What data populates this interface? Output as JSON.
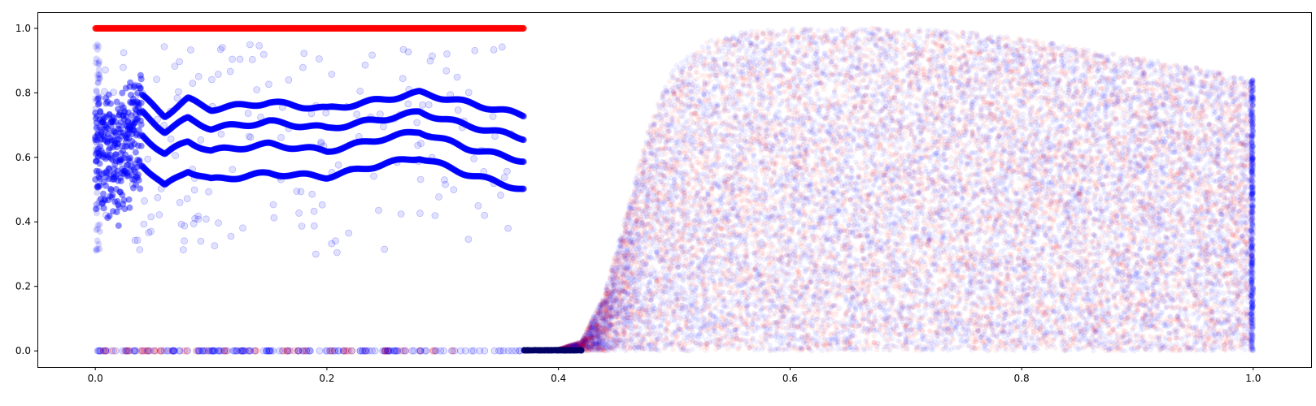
{
  "chart_data": {
    "type": "scatter",
    "title": "",
    "xlabel": "",
    "ylabel": "",
    "xlim": [
      -0.05,
      1.05
    ],
    "ylim": [
      -0.05,
      1.05
    ],
    "grid": false,
    "x_ticks": [
      0.0,
      0.2,
      0.4,
      0.6,
      0.8,
      1.0
    ],
    "x_tick_labels": [
      "0.0",
      "0.2",
      "0.4",
      "0.6",
      "0.8",
      "1.0"
    ],
    "y_ticks": [
      0.0,
      0.2,
      0.4,
      0.6,
      0.8,
      1.0
    ],
    "y_tick_labels": [
      "0.0",
      "0.2",
      "0.4",
      "0.6",
      "0.8",
      "1.0"
    ],
    "colors": {
      "red": "#ff0000",
      "blue": "#0000ff"
    },
    "series": [
      {
        "color": "red",
        "description_points": "red points at y=1.0 for x in [0, 0.37]",
        "x": [
          0.0,
          0.05,
          0.1,
          0.15,
          0.2,
          0.25,
          0.3,
          0.35,
          0.37
        ],
        "y": [
          1.0,
          1.0,
          1.0,
          1.0,
          1.0,
          1.0,
          1.0,
          1.0,
          1.0
        ]
      },
      {
        "color": "blue",
        "x": [
          0.0,
          0.02,
          0.04,
          0.06,
          0.08,
          0.1,
          0.15,
          0.2,
          0.25,
          0.28,
          0.32,
          0.37
        ],
        "y": [
          0.72,
          0.72,
          0.79,
          0.73,
          0.78,
          0.75,
          0.77,
          0.75,
          0.78,
          0.8,
          0.77,
          0.73
        ]
      },
      {
        "color": "blue",
        "x": [
          0.0,
          0.02,
          0.04,
          0.06,
          0.08,
          0.1,
          0.15,
          0.2,
          0.25,
          0.28,
          0.32,
          0.37
        ],
        "y": [
          0.66,
          0.66,
          0.74,
          0.68,
          0.72,
          0.69,
          0.71,
          0.69,
          0.72,
          0.74,
          0.7,
          0.66
        ]
      },
      {
        "color": "blue",
        "x": [
          0.0,
          0.02,
          0.04,
          0.06,
          0.08,
          0.1,
          0.15,
          0.2,
          0.25,
          0.28,
          0.32,
          0.37
        ],
        "y": [
          0.6,
          0.58,
          0.67,
          0.61,
          0.65,
          0.62,
          0.64,
          0.62,
          0.66,
          0.68,
          0.63,
          0.59
        ]
      },
      {
        "color": "blue",
        "x": [
          0.0,
          0.02,
          0.04,
          0.06,
          0.08,
          0.1,
          0.15,
          0.2,
          0.25,
          0.28,
          0.32,
          0.37
        ],
        "y": [
          0.52,
          0.46,
          0.58,
          0.51,
          0.56,
          0.53,
          0.55,
          0.54,
          0.58,
          0.6,
          0.55,
          0.5
        ]
      }
    ],
    "regions": [
      {
        "description": "dense red/blue point cloud",
        "x_range": [
          0.37,
          1.0
        ],
        "envelope_x": [
          0.37,
          0.4,
          0.42,
          0.44,
          0.46,
          0.48,
          0.5,
          0.53,
          0.56,
          0.6,
          0.65,
          0.7,
          0.75,
          0.8,
          0.85,
          0.9,
          0.95,
          1.0
        ],
        "envelope_y": [
          0.0,
          0.005,
          0.03,
          0.18,
          0.45,
          0.72,
          0.88,
          0.96,
          0.99,
          1.0,
          1.0,
          1.0,
          0.99,
          0.97,
          0.94,
          0.91,
          0.88,
          0.84
        ]
      }
    ]
  }
}
